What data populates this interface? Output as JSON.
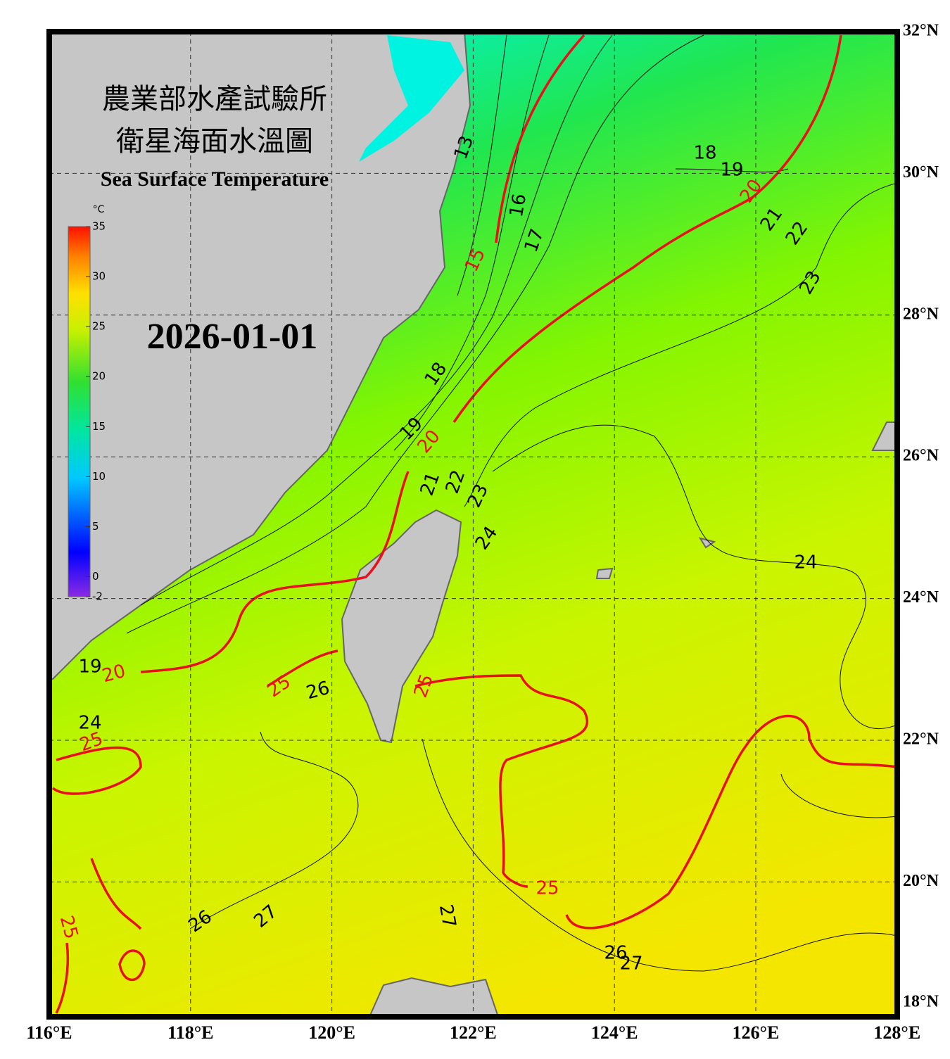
{
  "map": {
    "title_zh_1": "農業部水產試驗所",
    "title_zh_2": "衛星海面水溫圖",
    "title_en": "Sea Surface Temperature",
    "date": "2026-01-01",
    "colorbar": {
      "unit": "°C",
      "range": [
        -2,
        35
      ],
      "ticks": [
        35,
        30,
        25,
        20,
        15,
        10,
        5,
        0,
        -2
      ]
    },
    "lon_ticks": [
      {
        "value": 116,
        "label": "116°E"
      },
      {
        "value": 118,
        "label": "118°E"
      },
      {
        "value": 120,
        "label": "120°E"
      },
      {
        "value": 122,
        "label": "122°E"
      },
      {
        "value": 124,
        "label": "124°E"
      },
      {
        "value": 126,
        "label": "126°E"
      },
      {
        "value": 128,
        "label": "128°E"
      }
    ],
    "lat_ticks": [
      {
        "value": 32,
        "label": "32°N"
      },
      {
        "value": 30,
        "label": "30°N"
      },
      {
        "value": 28,
        "label": "28°N"
      },
      {
        "value": 26,
        "label": "26°N"
      },
      {
        "value": 24,
        "label": "24°N"
      },
      {
        "value": 22,
        "label": "22°N"
      },
      {
        "value": 20,
        "label": "20°N"
      },
      {
        "value": 18,
        "label": "18°N"
      }
    ],
    "contour_labels": [
      13,
      16,
      17,
      15,
      18,
      19,
      20,
      21,
      22,
      23,
      18,
      19,
      20,
      21,
      22,
      23,
      24,
      24,
      19,
      20,
      24,
      25,
      26,
      25,
      25,
      25,
      25,
      26,
      27,
      27,
      26,
      27
    ]
  }
}
